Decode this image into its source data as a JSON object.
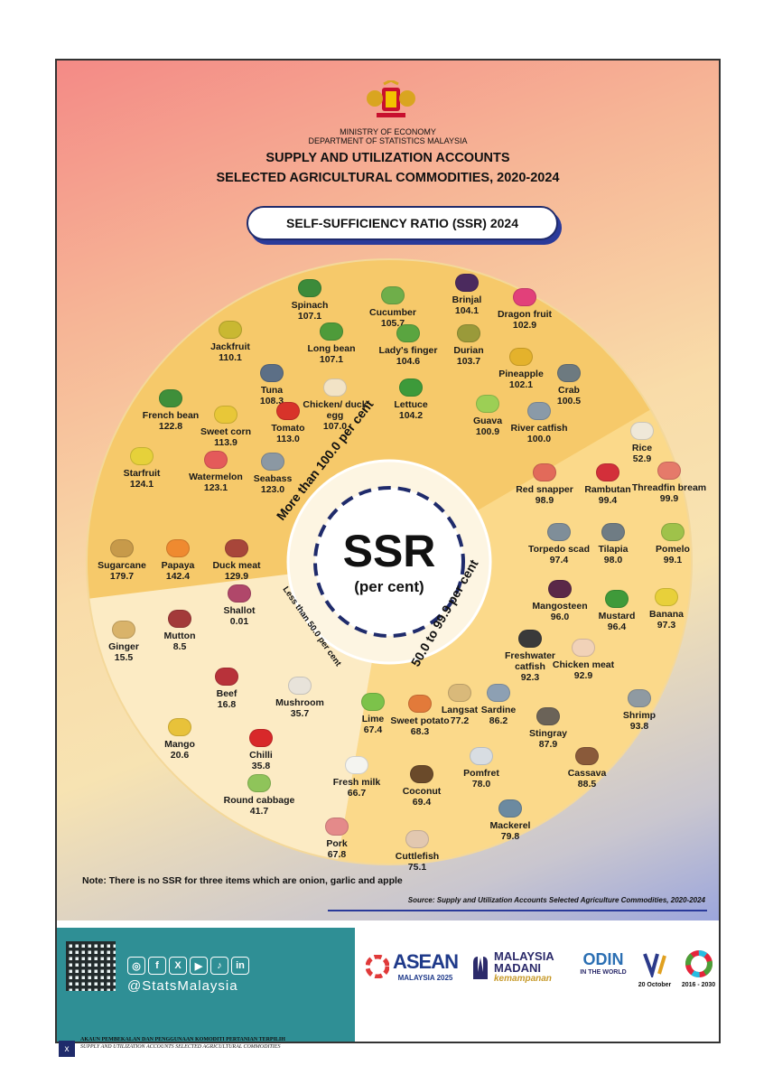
{
  "header": {
    "ministry_line1": "MINISTRY OF ECONOMY",
    "ministry_line2": "DEPARTMENT OF STATISTICS MALAYSIA",
    "title_line1": "SUPPLY  AND UTILIZATION ACCOUNTS",
    "title_line2": "SELECTED AGRICULTURAL COMMODITIES, 2020-2024",
    "pill": "SELF-SUFFICIENCY RATIO (SSR) 2024"
  },
  "center": {
    "ssr": "SSR",
    "unit": "(per cent)"
  },
  "bands": {
    "high": "More than 100.0 per cent",
    "mid": "50.0 to 99.9 per cent",
    "low": "Less than 50.0 per cent"
  },
  "colors": {
    "high": "#f6c96a",
    "mid": "#fbd98a",
    "low": "#fcebc4"
  },
  "items": [
    {
      "name": "Spinach",
      "value": "107.1",
      "color": "#3c8b3a"
    },
    {
      "name": "Cucumber",
      "value": "105.7",
      "color": "#6fae4a"
    },
    {
      "name": "Brinjal",
      "value": "104.1",
      "color": "#4b2a5e"
    },
    {
      "name": "Dragon fruit",
      "value": "102.9",
      "color": "#e2407a"
    },
    {
      "name": "Jackfruit",
      "value": "110.1",
      "color": "#c9b832"
    },
    {
      "name": "Long bean",
      "value": "107.1",
      "color": "#4e9b3a"
    },
    {
      "name": "Lady's finger",
      "value": "104.6",
      "color": "#5aa540"
    },
    {
      "name": "Durian",
      "value": "103.7",
      "color": "#9a9a3a"
    },
    {
      "name": "Pineapple",
      "value": "102.1",
      "color": "#e4b22c"
    },
    {
      "name": "Crab",
      "value": "100.5",
      "color": "#6d7a80"
    },
    {
      "name": "Tuna",
      "value": "108.3",
      "color": "#5c6f86"
    },
    {
      "name": "Chicken/ duck egg",
      "value": "107.0",
      "color": "#f2e3c6"
    },
    {
      "name": "Lettuce",
      "value": "104.2",
      "color": "#3d9a3a"
    },
    {
      "name": "Guava",
      "value": "100.9",
      "color": "#9ccf55"
    },
    {
      "name": "River catfish",
      "value": "100.0",
      "color": "#8a9aa8"
    },
    {
      "name": "French bean",
      "value": "122.8",
      "color": "#3f8f3a"
    },
    {
      "name": "Sweet corn",
      "value": "113.9",
      "color": "#e8c738"
    },
    {
      "name": "Tomato",
      "value": "113.0",
      "color": "#d8332a"
    },
    {
      "name": "Starfruit",
      "value": "124.1",
      "color": "#e6d13a"
    },
    {
      "name": "Watermelon",
      "value": "123.1",
      "color": "#e45a5a"
    },
    {
      "name": "Seabass",
      "value": "123.0",
      "color": "#8b98a3"
    },
    {
      "name": "Sugarcane",
      "value": "179.7",
      "color": "#c79a4a"
    },
    {
      "name": "Papaya",
      "value": "142.4",
      "color": "#ef8a30"
    },
    {
      "name": "Duck meat",
      "value": "129.9",
      "color": "#a8463a"
    },
    {
      "name": "Rice",
      "value": "52.9",
      "color": "#efe8d8"
    },
    {
      "name": "Red snapper",
      "value": "98.9",
      "color": "#e26a5a"
    },
    {
      "name": "Rambutan",
      "value": "99.4",
      "color": "#d32f3a"
    },
    {
      "name": "Threadfin bream",
      "value": "99.9",
      "color": "#e57a6a"
    },
    {
      "name": "Torpedo scad",
      "value": "97.4",
      "color": "#7f8e99"
    },
    {
      "name": "Tilapia",
      "value": "98.0",
      "color": "#6f7c84"
    },
    {
      "name": "Pomelo",
      "value": "99.1",
      "color": "#9fc24a"
    },
    {
      "name": "Mangosteen",
      "value": "96.0",
      "color": "#5a2848"
    },
    {
      "name": "Mustard",
      "value": "96.4",
      "color": "#3f9a3a"
    },
    {
      "name": "Banana",
      "value": "97.3",
      "color": "#e8d03a"
    },
    {
      "name": "Freshwater catfish",
      "value": "92.3",
      "color": "#3a3a3a"
    },
    {
      "name": "Chicken meat",
      "value": "92.9",
      "color": "#f1d2b8"
    },
    {
      "name": "Sardine",
      "value": "86.2",
      "color": "#8da0b3"
    },
    {
      "name": "Shrimp",
      "value": "93.8",
      "color": "#8f9aa2"
    },
    {
      "name": "Stingray",
      "value": "87.9",
      "color": "#6b6358"
    },
    {
      "name": "Langsat",
      "value": "77.2",
      "color": "#d9b97a"
    },
    {
      "name": "Lime",
      "value": "67.4",
      "color": "#7cc24a"
    },
    {
      "name": "Sweet potato",
      "value": "68.3",
      "color": "#e27a3a"
    },
    {
      "name": "Pomfret",
      "value": "78.0",
      "color": "#d8dde2"
    },
    {
      "name": "Cassava",
      "value": "88.5",
      "color": "#8a5a3a"
    },
    {
      "name": "Fresh milk",
      "value": "66.7",
      "color": "#f4f4f0"
    },
    {
      "name": "Coconut",
      "value": "69.4",
      "color": "#6a4a2a"
    },
    {
      "name": "Mackerel",
      "value": "79.8",
      "color": "#6c8aa0"
    },
    {
      "name": "Pork",
      "value": "67.8",
      "color": "#e48a8a"
    },
    {
      "name": "Cuttlefish",
      "value": "75.1",
      "color": "#e2c8b0"
    },
    {
      "name": "Ginger",
      "value": "15.5",
      "color": "#d9b36a"
    },
    {
      "name": "Mutton",
      "value": "8.5",
      "color": "#a33a3a"
    },
    {
      "name": "Shallot",
      "value": "0.01",
      "color": "#b0476a"
    },
    {
      "name": "Beef",
      "value": "16.8",
      "color": "#b8323a"
    },
    {
      "name": "Mushroom",
      "value": "35.7",
      "color": "#e8e3da"
    },
    {
      "name": "Mango",
      "value": "20.6",
      "color": "#e8c23a"
    },
    {
      "name": "Chilli",
      "value": "35.8",
      "color": "#d8282a"
    },
    {
      "name": "Round cabbage",
      "value": "41.7",
      "color": "#8fc45a"
    }
  ],
  "note": "Note: There is no SSR for three items which are onion, garlic and apple",
  "source": "Source: Supply and Utilization Accounts Selected Agriculture Commodities, 2020-2024",
  "social": {
    "handle": "@StatsMalaysia",
    "icons": [
      "instagram-icon",
      "facebook-icon",
      "x-icon",
      "youtube-icon",
      "tiktok-icon",
      "linkedin-icon"
    ]
  },
  "logos": {
    "asean": "ASEAN",
    "asean_sub": "MALAYSIA 2025",
    "madani": "MALAYSIA MADANI",
    "madani_sub": "kemampanan",
    "odin": "ODIN",
    "odin_sub": "IN THE WORLD",
    "date": "20 October",
    "sdg_years": "2016 - 2030"
  },
  "footer": {
    "line1": "AKAUN PEMBEKALAN DAN PENGGUNAAN KOMODITI PERTANIAN TERPILIH",
    "line2": "SUPPLY AND UTILIZATION ACCOUNTS SELECTED AGRICULTURAL COMMODITIES",
    "page": "x"
  }
}
